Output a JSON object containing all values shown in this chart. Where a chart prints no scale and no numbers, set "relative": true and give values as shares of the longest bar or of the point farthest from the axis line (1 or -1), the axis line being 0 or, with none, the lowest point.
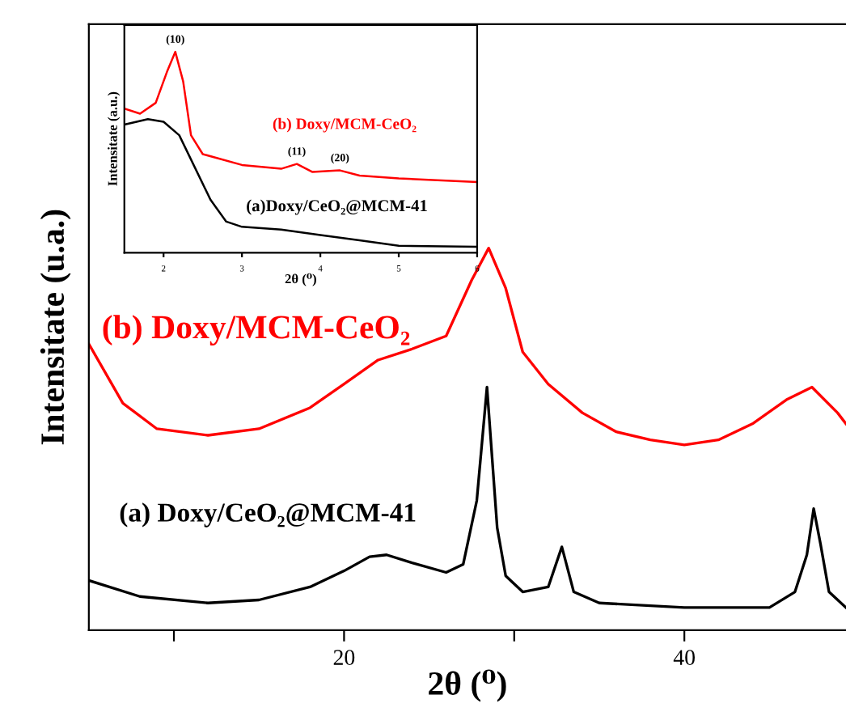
{
  "chart_data": [
    {
      "type": "line",
      "relative": true,
      "xlabel": "2θ (⁰)",
      "ylabel": "Intensitate (u.a.)",
      "xlim": [
        5,
        49.5
      ],
      "xticks": [
        {
          "value": 10,
          "label": null
        },
        20,
        {
          "value": 30,
          "label": null
        },
        40
      ],
      "grid": false,
      "legend": false,
      "series": [
        {
          "name": "(b) Doxy/MCM-CeO₂",
          "color": "#ff0000",
          "x": [
            5,
            7,
            9,
            12,
            15,
            18,
            20,
            22,
            24,
            26,
            27.5,
            28.5,
            29.5,
            30.5,
            32,
            34,
            36,
            38,
            40,
            42,
            44,
            46,
            47.5,
            49,
            49.5
          ],
          "values": [
            0.749,
            0.594,
            0.527,
            0.51,
            0.527,
            0.582,
            0.644,
            0.707,
            0.736,
            0.77,
            0.916,
            1.0,
            0.895,
            0.728,
            0.644,
            0.569,
            0.519,
            0.498,
            0.485,
            0.498,
            0.54,
            0.603,
            0.636,
            0.569,
            0.54
          ]
        },
        {
          "name": "(a) Doxy/CeO₂@MCM-41",
          "color": "#000000",
          "x": [
            5,
            8,
            12,
            15,
            18,
            20,
            21.5,
            22.5,
            24,
            26,
            27,
            27.8,
            28.4,
            29,
            29.5,
            30.5,
            32,
            32.8,
            33.5,
            35,
            40,
            45,
            46.5,
            47.2,
            47.6,
            48,
            48.5,
            49.5
          ],
          "values": [
            0.13,
            0.088,
            0.071,
            0.079,
            0.113,
            0.155,
            0.192,
            0.197,
            0.176,
            0.151,
            0.172,
            0.339,
            0.636,
            0.268,
            0.142,
            0.1,
            0.113,
            0.218,
            0.1,
            0.071,
            0.059,
            0.059,
            0.1,
            0.197,
            0.318,
            0.226,
            0.1,
            0.059
          ]
        }
      ]
    },
    {
      "type": "line",
      "relative": true,
      "xlabel": "2θ (⁰)",
      "ylabel": "Intensitate (a.u.)",
      "xlim": [
        1.5,
        6
      ],
      "xticks": [
        2,
        3,
        4,
        5,
        6
      ],
      "grid": false,
      "legend": false,
      "annotations": [
        {
          "text": "(10)",
          "x": 2.15,
          "y": 1.0
        },
        {
          "text": "(11)",
          "x": 3.7,
          "y": 0.442
        },
        {
          "text": "(20)",
          "x": 4.25,
          "y": 0.41
        }
      ],
      "series": [
        {
          "name": "(b) Doxy/MCM-CeO₂",
          "color": "#ff0000",
          "x": [
            1.5,
            1.7,
            1.9,
            2.05,
            2.15,
            2.25,
            2.35,
            2.5,
            3,
            3.5,
            3.7,
            3.9,
            4.25,
            4.5,
            5,
            6
          ],
          "values": [
            0.718,
            0.692,
            0.746,
            0.907,
            1.0,
            0.853,
            0.585,
            0.491,
            0.437,
            0.418,
            0.442,
            0.402,
            0.41,
            0.384,
            0.37,
            0.352
          ]
        },
        {
          "name": "(a)Doxy/CeO₂@MCM-41",
          "color": "#000000",
          "x": [
            1.5,
            1.8,
            2.0,
            2.2,
            2.4,
            2.6,
            2.8,
            3.0,
            3.5,
            4.0,
            4.5,
            5,
            6
          ],
          "values": [
            0.638,
            0.665,
            0.652,
            0.585,
            0.424,
            0.263,
            0.155,
            0.129,
            0.115,
            0.088,
            0.062,
            0.035,
            0.03
          ]
        }
      ]
    }
  ]
}
